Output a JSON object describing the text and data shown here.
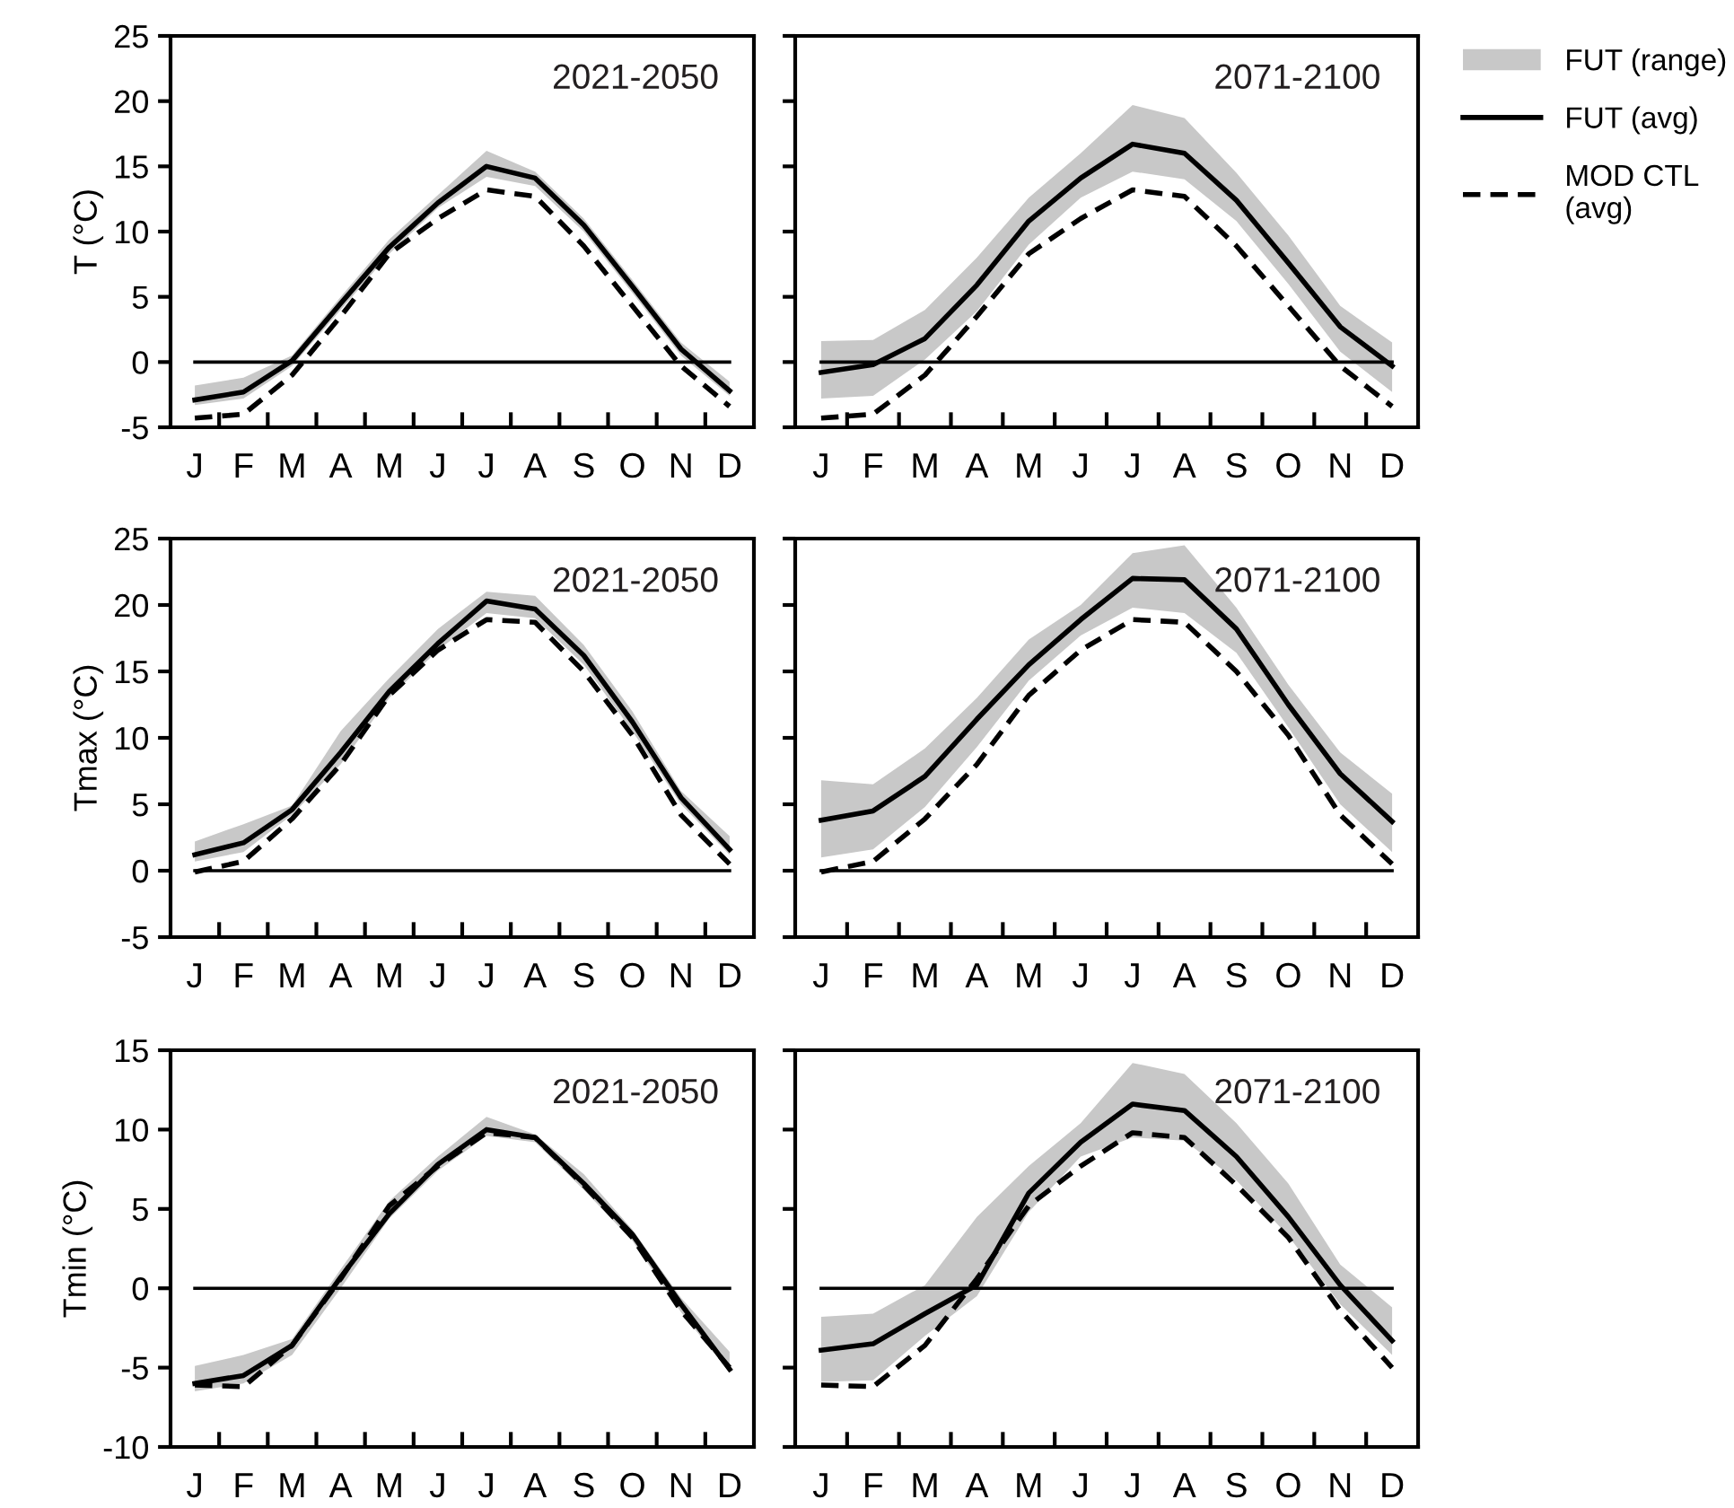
{
  "chart_data": [
    {
      "type": "line",
      "ylabel": "T (°C)",
      "annotations": [
        "2021-2050"
      ],
      "categories": [
        "J",
        "F",
        "M",
        "A",
        "M",
        "J",
        "J",
        "A",
        "S",
        "O",
        "N",
        "D"
      ],
      "ylim": [
        -5,
        25
      ],
      "yticks": [
        -5,
        0,
        5,
        10,
        15,
        20,
        25
      ],
      "legend": "right",
      "ref_lines": [
        {
          "axis": "y",
          "value": 0,
          "color": "#000000"
        }
      ],
      "series": [
        {
          "name": "FUT (range)",
          "type": "area",
          "color": "#c8c8c8",
          "lower": [
            -3.3,
            -2.8,
            -0.3,
            4.0,
            8.3,
            11.8,
            14.2,
            13.5,
            10.0,
            5.3,
            0.5,
            -2.6
          ],
          "upper": [
            -1.8,
            -1.2,
            0.5,
            5.0,
            9.4,
            12.8,
            16.2,
            14.6,
            11.0,
            6.3,
            1.5,
            -1.5
          ],
          "values": [
            null,
            null,
            null,
            null,
            null,
            null,
            null,
            null,
            null,
            null,
            null,
            null
          ]
        },
        {
          "name": "FUT (avg)",
          "color": "#000000",
          "line_style": "solid",
          "values": [
            -2.9,
            -2.3,
            0.1,
            4.5,
            8.8,
            12.2,
            15.0,
            14.1,
            10.5,
            5.8,
            1.0,
            -2.2
          ]
        },
        {
          "name": "MOD CTL\n(avg)",
          "color": "#000000",
          "line_style": "dashed",
          "values": [
            -4.3,
            -4.0,
            -1.0,
            3.5,
            8.3,
            11.0,
            13.2,
            12.7,
            8.9,
            4.3,
            -0.3,
            -3.4
          ]
        }
      ]
    },
    {
      "type": "line",
      "annotations": [
        "2071-2100"
      ],
      "categories": [
        "J",
        "F",
        "M",
        "A",
        "M",
        "J",
        "J",
        "A",
        "S",
        "O",
        "N",
        "D"
      ],
      "ylim": [
        -5,
        25
      ],
      "yticks": [
        -5,
        0,
        5,
        10,
        15,
        20,
        25
      ],
      "tick_labels": "x",
      "ref_lines": [
        {
          "axis": "y",
          "value": 0,
          "color": "#000000"
        }
      ],
      "series": [
        {
          "type": "area",
          "color": "#c8c8c8",
          "lower": [
            -2.8,
            -2.6,
            0.2,
            3.9,
            9.0,
            12.6,
            14.6,
            14.0,
            10.8,
            6.0,
            0.8,
            -2.3
          ],
          "upper": [
            1.6,
            1.7,
            4.0,
            8.0,
            12.6,
            16.0,
            19.7,
            18.7,
            14.5,
            9.7,
            4.3,
            1.5
          ],
          "values": [
            null,
            null,
            null,
            null,
            null,
            null,
            null,
            null,
            null,
            null,
            null,
            null
          ]
        },
        {
          "color": "#000000",
          "line_style": "solid",
          "values": [
            -0.8,
            -0.2,
            1.8,
            5.9,
            10.8,
            14.1,
            16.7,
            16.0,
            12.4,
            7.6,
            2.7,
            -0.3
          ]
        },
        {
          "color": "#000000",
          "line_style": "dashed",
          "values": [
            -4.3,
            -4.0,
            -1.0,
            3.5,
            8.3,
            11.0,
            13.2,
            12.7,
            8.9,
            4.3,
            -0.3,
            -3.4
          ]
        }
      ]
    },
    {
      "type": "line",
      "ylabel": "Tmax (°C)",
      "annotations": [
        "2021-2050"
      ],
      "categories": [
        "J",
        "F",
        "M",
        "A",
        "M",
        "J",
        "J",
        "A",
        "S",
        "O",
        "N",
        "D"
      ],
      "ylim": [
        -5,
        25
      ],
      "yticks": [
        -5,
        0,
        5,
        10,
        15,
        20,
        25
      ],
      "ref_lines": [
        {
          "axis": "y",
          "value": 0,
          "color": "#000000"
        }
      ],
      "series": [
        {
          "type": "area",
          "color": "#c8c8c8",
          "lower": [
            0.7,
            1.4,
            4.2,
            8.0,
            13.0,
            16.6,
            19.4,
            19.0,
            15.5,
            10.5,
            5.0,
            1.2
          ],
          "upper": [
            2.2,
            3.5,
            4.9,
            10.5,
            14.5,
            18.2,
            21.0,
            20.7,
            17.0,
            12.0,
            6.0,
            2.6
          ],
          "values": [
            null,
            null,
            null,
            null,
            null,
            null,
            null,
            null,
            null,
            null,
            null,
            null
          ]
        },
        {
          "color": "#000000",
          "line_style": "solid",
          "values": [
            1.2,
            2.1,
            4.6,
            8.9,
            13.5,
            17.1,
            20.3,
            19.7,
            16.2,
            11.2,
            5.5,
            1.6
          ]
        },
        {
          "color": "#000000",
          "line_style": "dashed",
          "values": [
            -0.1,
            0.7,
            3.9,
            8.0,
            13.2,
            16.6,
            18.9,
            18.7,
            15.0,
            10.2,
            4.2,
            0.5
          ]
        }
      ]
    },
    {
      "type": "line",
      "annotations": [
        "2071-2100"
      ],
      "categories": [
        "J",
        "F",
        "M",
        "A",
        "M",
        "J",
        "J",
        "A",
        "S",
        "O",
        "N",
        "D"
      ],
      "ylim": [
        -5,
        25
      ],
      "yticks": [
        -5,
        0,
        5,
        10,
        15,
        20,
        25
      ],
      "tick_labels": "x",
      "ref_lines": [
        {
          "axis": "y",
          "value": 0,
          "color": "#000000"
        }
      ],
      "series": [
        {
          "type": "area",
          "color": "#c8c8c8",
          "lower": [
            1.0,
            1.6,
            4.8,
            9.3,
            14.3,
            17.7,
            19.8,
            19.4,
            16.4,
            10.8,
            5.0,
            1.4
          ],
          "upper": [
            6.8,
            6.5,
            9.2,
            13.0,
            17.4,
            20.0,
            23.9,
            24.5,
            19.8,
            14.0,
            8.9,
            5.8
          ],
          "values": [
            null,
            null,
            null,
            null,
            null,
            null,
            null,
            null,
            null,
            null,
            null,
            null
          ]
        },
        {
          "color": "#000000",
          "line_style": "solid",
          "values": [
            3.8,
            4.5,
            7.1,
            11.4,
            15.5,
            18.9,
            22.0,
            21.9,
            18.2,
            12.5,
            7.3,
            3.7
          ]
        },
        {
          "color": "#000000",
          "line_style": "dashed",
          "values": [
            -0.1,
            0.7,
            3.9,
            8.0,
            13.2,
            16.6,
            18.9,
            18.7,
            15.0,
            10.2,
            4.2,
            0.5
          ]
        }
      ]
    },
    {
      "type": "line",
      "ylabel": "Tmin (°C)",
      "annotations": [
        "2021-2050"
      ],
      "categories": [
        "J",
        "F",
        "M",
        "A",
        "M",
        "J",
        "J",
        "A",
        "S",
        "O",
        "N",
        "D"
      ],
      "ylim": [
        -10,
        15
      ],
      "yticks": [
        -10,
        -5,
        0,
        5,
        10,
        15
      ],
      "ref_lines": [
        {
          "axis": "y",
          "value": 0,
          "color": "#000000"
        }
      ],
      "series": [
        {
          "type": "area",
          "color": "#c8c8c8",
          "lower": [
            -6.5,
            -6.0,
            -4.2,
            0.0,
            4.4,
            7.4,
            9.6,
            9.2,
            6.2,
            3.0,
            -1.5,
            -5.3
          ],
          "upper": [
            -4.9,
            -4.2,
            -3.2,
            1.2,
            5.5,
            8.3,
            10.8,
            9.7,
            7.2,
            3.7,
            -0.6,
            -4.0
          ],
          "values": [
            null,
            null,
            null,
            null,
            null,
            null,
            null,
            null,
            null,
            null,
            null,
            null
          ]
        },
        {
          "color": "#000000",
          "line_style": "solid",
          "values": [
            -6.0,
            -5.5,
            -3.6,
            0.7,
            4.7,
            7.8,
            10.0,
            9.5,
            6.6,
            3.4,
            -1.0,
            -5.1
          ]
        },
        {
          "color": "#000000",
          "line_style": "dashed",
          "values": [
            -6.1,
            -6.2,
            -3.6,
            0.6,
            5.2,
            7.7,
            9.8,
            9.5,
            6.5,
            3.2,
            -1.4,
            -5.0
          ]
        }
      ]
    },
    {
      "type": "line",
      "annotations": [
        "2071-2100"
      ],
      "categories": [
        "J",
        "F",
        "M",
        "A",
        "M",
        "J",
        "J",
        "A",
        "S",
        "O",
        "N",
        "D"
      ],
      "ylim": [
        -10,
        15
      ],
      "yticks": [
        -10,
        -5,
        0,
        5,
        10,
        15
      ],
      "tick_labels": "x",
      "ref_lines": [
        {
          "axis": "y",
          "value": 0,
          "color": "#000000"
        }
      ],
      "series": [
        {
          "type": "area",
          "color": "#c8c8c8",
          "lower": [
            -5.9,
            -5.8,
            -3.0,
            -0.5,
            4.8,
            8.3,
            9.5,
            9.3,
            6.8,
            3.3,
            -1.0,
            -4.2
          ],
          "upper": [
            -1.8,
            -1.6,
            0.2,
            4.5,
            7.7,
            10.4,
            14.2,
            13.5,
            10.4,
            6.6,
            1.5,
            -1.2
          ],
          "values": [
            null,
            null,
            null,
            null,
            null,
            null,
            null,
            null,
            null,
            null,
            null,
            null
          ]
        },
        {
          "color": "#000000",
          "line_style": "solid",
          "values": [
            -3.9,
            -3.5,
            -1.6,
            0.2,
            6.0,
            9.2,
            11.6,
            11.2,
            8.3,
            4.5,
            0.2,
            -3.3
          ]
        },
        {
          "color": "#000000",
          "line_style": "dashed",
          "values": [
            -6.1,
            -6.2,
            -3.6,
            0.6,
            5.2,
            7.7,
            9.8,
            9.5,
            6.5,
            3.2,
            -1.4,
            -5.0
          ]
        }
      ]
    }
  ]
}
